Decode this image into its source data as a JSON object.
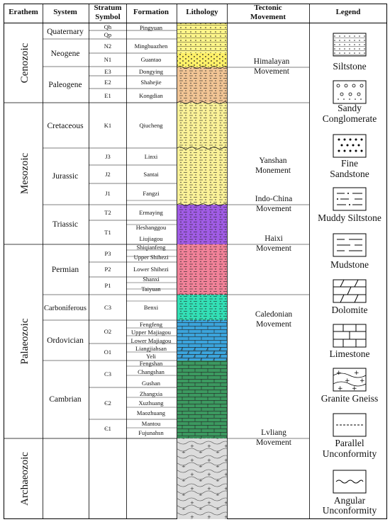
{
  "headers": {
    "erathem": "Erathem",
    "system": "System",
    "symbol": "Stratum Symbol",
    "formation": "Formation",
    "lithology": "Lithology",
    "tectonic": "Tectonic Movement",
    "legend": "Legend"
  },
  "erathems": [
    "Cenozoic",
    "Mesozoic",
    "Palaeozoic",
    "Archaeozoic"
  ],
  "systems": [
    "Quaternary",
    "Neogene",
    "Paleogene",
    "Cretaceous",
    "Jurassic",
    "Triassic",
    "Permian",
    "Carboniferous",
    "Ordovician",
    "Cambrian"
  ],
  "symbols": [
    "Qh",
    "Qp",
    "N2",
    "N1",
    "E3",
    "E2",
    "E1",
    "K1",
    "J3",
    "J2",
    "J1",
    "T2",
    "T1",
    "P3",
    "P2",
    "P1",
    "C3",
    "O2",
    "O1",
    "C3",
    "Є2",
    "Є1"
  ],
  "formations": [
    "Pingyuan",
    "Minghuazhen",
    "Guantao",
    "Dongying",
    "Shahejie",
    "Kongdian",
    "Qiucheng",
    "Linxi",
    "Santai",
    "Fangzi",
    "Ermaying",
    "Heshanggou",
    "Liujiagou",
    "Shiqianfeng",
    "Upper Shihezi",
    "Lower Shihezi",
    "Shanxi",
    "Taiyuan",
    "Benxi",
    "Fengfeng",
    "Upper Majiagou",
    "Lower Majiagou",
    "Liangjiahsan",
    "Yeli",
    "Fengshan",
    "Changshan",
    "Gushan",
    "Zhangxia",
    "Xuzhuang",
    "Maozhuang",
    "Mantou",
    "Fujunahsn"
  ],
  "movements": [
    [
      "Himalayan",
      "Movement"
    ],
    [
      "Yanshan",
      "Monement"
    ],
    [
      "Indo-China",
      "Movement"
    ],
    [
      "Haixi",
      "Movement"
    ],
    [
      "Caledonian",
      "Movement"
    ],
    [
      "Lvliang",
      "Movement"
    ]
  ],
  "legend": [
    {
      "icon": "siltstone",
      "label": [
        "Siltstone"
      ]
    },
    {
      "icon": "sandy-conglomerate",
      "label": [
        "Sandy",
        "Conglomerate"
      ]
    },
    {
      "icon": "fine-sandstone",
      "label": [
        "Fine",
        "Sandstone"
      ]
    },
    {
      "icon": "muddy-siltstone",
      "label": [
        "Muddy Siltstone"
      ]
    },
    {
      "icon": "mudstone",
      "label": [
        "Mudstone"
      ]
    },
    {
      "icon": "dolomite",
      "label": [
        "Dolomite"
      ]
    },
    {
      "icon": "limestone",
      "label": [
        "Limestone"
      ]
    },
    {
      "icon": "granite-gneiss",
      "label": [
        "Granite Gneiss"
      ]
    },
    {
      "icon": "parallel-unconformity",
      "label": [
        "Parallel",
        "Unconformity"
      ]
    },
    {
      "icon": "angular-unconformity",
      "label": [
        "Angular",
        "Unconformity"
      ]
    }
  ],
  "colors": {
    "cenozoic_yellow": "#fff68a",
    "cenozoic_orange": "#f2c595",
    "mesozoic_yellow": "#fbf298",
    "triassic_purple": "#a15ce6",
    "permian_pink": "#f28299",
    "carboniferous_teal": "#33e0b6",
    "ordovician_blue": "#3ba4dc",
    "cambrian_green": "#3c9960",
    "archaean_gray": "#dcdcdc"
  }
}
